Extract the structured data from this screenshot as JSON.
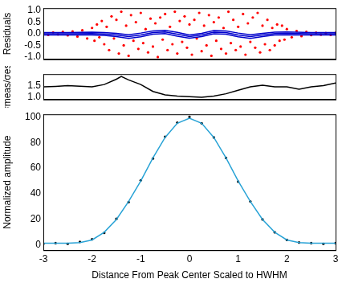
{
  "chart_data": [
    {
      "type": "scatter",
      "y_label": "Residuals",
      "tick_labels": "y",
      "grid": false,
      "xlim": [
        -3,
        3
      ],
      "xticks": [
        -3,
        -2,
        -1,
        0,
        1,
        2,
        3
      ],
      "ylim": [
        -1.1,
        1.1
      ],
      "yticks": [
        {
          "value": -1,
          "label": "-1.0"
        },
        {
          "value": -0.5,
          "label": "-0.5"
        },
        {
          "value": 0,
          "label": "0.0"
        },
        {
          "value": 0.5,
          "label": "0.5"
        },
        {
          "value": 1,
          "label": "1.0"
        }
      ],
      "series": [
        {
          "type": "scatter",
          "color": "#ff0000",
          "marker": "circle",
          "x": [
            -3,
            -2.9,
            -2.8,
            -2.7,
            -2.6,
            -2.5,
            -2.4,
            -2.3,
            -2.2,
            -2.1,
            -2,
            -1.95,
            -1.9,
            -1.85,
            -1.8,
            -1.75,
            -1.7,
            -1.65,
            -1.6,
            -1.55,
            -1.5,
            -1.45,
            -1.4,
            -1.35,
            -1.3,
            -1.25,
            -1.2,
            -1.15,
            -1.1,
            -1.05,
            -1,
            -0.95,
            -0.9,
            -0.85,
            -0.8,
            -0.75,
            -0.7,
            -0.65,
            -0.6,
            -0.55,
            -0.5,
            -0.45,
            -0.4,
            -0.35,
            -0.3,
            -0.25,
            -0.2,
            -0.15,
            -0.1,
            -0.05,
            0,
            0.05,
            0.1,
            0.15,
            0.2,
            0.25,
            0.3,
            0.35,
            0.4,
            0.45,
            0.5,
            0.55,
            0.6,
            0.65,
            0.7,
            0.75,
            0.8,
            0.85,
            0.9,
            0.95,
            1,
            1.05,
            1.1,
            1.15,
            1.2,
            1.25,
            1.3,
            1.35,
            1.4,
            1.45,
            1.5,
            1.55,
            1.6,
            1.65,
            1.7,
            1.75,
            1.8,
            1.85,
            1.9,
            1.95,
            2,
            2.1,
            2.2,
            2.3,
            2.4,
            2.5,
            2.6,
            2.7,
            2.8,
            2.9,
            3
          ],
          "values": [
            0.03,
            -0.05,
            0.06,
            -0.03,
            0.08,
            -0.07,
            0.1,
            -0.12,
            0.15,
            -0.2,
            0.25,
            -0.3,
            0.4,
            -0.15,
            0.55,
            -0.45,
            0.3,
            -0.7,
            0.75,
            -0.2,
            0.6,
            -0.85,
            0.95,
            -0.5,
            0.35,
            -0.95,
            0.8,
            -0.3,
            0.5,
            -0.65,
            0.9,
            -0.4,
            0.2,
            -0.8,
            0.65,
            -0.55,
            0.45,
            -1.0,
            0.7,
            -0.25,
            0.85,
            -0.7,
            0.3,
            -0.45,
            0.95,
            -0.85,
            0.55,
            -0.35,
            0.75,
            -0.6,
            0.4,
            -0.9,
            0.6,
            -0.2,
            0.9,
            -0.75,
            0.35,
            -0.5,
            0.8,
            -0.95,
            0.5,
            -0.3,
            0.7,
            -0.65,
            0.25,
            -0.85,
            0.95,
            -0.4,
            0.6,
            -0.7,
            0.3,
            -0.55,
            0.85,
            -0.9,
            0.45,
            -0.35,
            0.7,
            -0.6,
            0.9,
            -0.8,
            0.35,
            -0.45,
            0.6,
            -0.7,
            0.25,
            -0.5,
            0.4,
            -0.3,
            0.35,
            -0.25,
            0.2,
            -0.15,
            0.12,
            -0.1,
            0.08,
            -0.06,
            0.05,
            -0.04,
            0.03,
            -0.05,
            0.04
          ]
        },
        {
          "type": "line",
          "color": "#0000cc",
          "line_style": "solid",
          "x": [
            -3,
            -2.5,
            -2,
            -1.75,
            -1.5,
            -1.25,
            -1,
            -0.75,
            -0.5,
            -0.25,
            0,
            0.25,
            0.5,
            0.75,
            1,
            1.25,
            1.5,
            1.75,
            2,
            2.5,
            3
          ],
          "values": [
            0.05,
            0.05,
            0.07,
            0.05,
            0.02,
            -0.04,
            0.03,
            0.12,
            0.15,
            0.06,
            -0.05,
            0.02,
            0.14,
            0.12,
            0.03,
            -0.04,
            0.02,
            0.07,
            0.08,
            0.05,
            0.05
          ]
        },
        {
          "type": "line",
          "color": "#0000cc",
          "line_style": "solid",
          "x": [
            -3,
            -2.5,
            -2,
            -1.75,
            -1.5,
            -1.25,
            -1,
            -0.75,
            -0.5,
            -0.25,
            0,
            0.25,
            0.5,
            0.75,
            1,
            1.25,
            1.5,
            1.75,
            2,
            2.5,
            3
          ],
          "values": [
            0,
            0,
            0.01,
            -0.01,
            -0.05,
            -0.12,
            -0.05,
            0.05,
            0.08,
            -0.02,
            -0.12,
            -0.05,
            0.07,
            0.05,
            -0.05,
            -0.12,
            -0.05,
            0.01,
            0.02,
            0,
            0
          ]
        },
        {
          "type": "line",
          "color": "#0000cc",
          "line_style": "solid",
          "x": [
            -3,
            -2.5,
            -2,
            -1.75,
            -1.5,
            -1.25,
            -1,
            -0.75,
            -0.5,
            -0.25,
            0,
            0.25,
            0.5,
            0.75,
            1,
            1.25,
            1.5,
            1.75,
            2,
            2.5,
            3
          ],
          "values": [
            -0.05,
            -0.05,
            -0.05,
            -0.07,
            -0.12,
            -0.2,
            -0.13,
            -0.02,
            0.01,
            -0.1,
            -0.19,
            -0.12,
            0,
            -0.02,
            -0.13,
            -0.2,
            -0.12,
            -0.05,
            -0.04,
            -0.05,
            -0.05
          ]
        }
      ]
    },
    {
      "type": "line",
      "y_label": "σmeas/σest",
      "tick_labels": "y",
      "grid": false,
      "xlim": [
        -3,
        3
      ],
      "xticks": [
        -3,
        -2,
        -1,
        0,
        1,
        2,
        3
      ],
      "ylim": [
        0.9,
        2.0
      ],
      "yticks": [
        {
          "value": 1,
          "label": "1.0"
        },
        {
          "value": 1.5,
          "label": "1.5"
        }
      ],
      "series": [
        {
          "type": "line",
          "color": "#000000",
          "line_style": "solid",
          "x": [
            -3,
            -2.75,
            -2.5,
            -2.25,
            -2,
            -1.75,
            -1.5,
            -1.4,
            -1.25,
            -1,
            -0.75,
            -0.5,
            -0.25,
            0,
            0.25,
            0.5,
            0.75,
            1,
            1.25,
            1.5,
            1.75,
            2,
            2.25,
            2.5,
            2.75,
            3
          ],
          "values": [
            1.45,
            1.47,
            1.5,
            1.48,
            1.45,
            1.55,
            1.78,
            1.9,
            1.75,
            1.55,
            1.25,
            1.1,
            1.05,
            1.02,
            1.0,
            1.05,
            1.15,
            1.3,
            1.45,
            1.52,
            1.45,
            1.45,
            1.35,
            1.45,
            1.5,
            1.62
          ]
        }
      ]
    },
    {
      "type": "line",
      "y_label": "Normalized amplitude",
      "x_label": "Distance From Peak Center Scaled to HWHM",
      "grid": false,
      "xlim": [
        -3,
        3
      ],
      "xticks": [
        -3,
        -2,
        -1,
        0,
        1,
        2,
        3
      ],
      "ylim": [
        -4,
        102
      ],
      "yticks": [
        0,
        20,
        40,
        60,
        80,
        100
      ],
      "series": [
        {
          "type": "scatter",
          "color": "#000000",
          "marker": "circle",
          "x": [
            -3,
            -2.75,
            -2.5,
            -2.25,
            -2,
            -1.75,
            -1.5,
            -1.25,
            -1,
            -0.75,
            -0.5,
            -0.25,
            0,
            0.25,
            0.5,
            0.75,
            1,
            1.25,
            1.5,
            1.75,
            2,
            2.25,
            2.5,
            2.75,
            3
          ],
          "values": [
            1,
            1.5,
            1,
            2.5,
            4.5,
            9.5,
            20.5,
            33.5,
            50.5,
            67.5,
            84.5,
            95.5,
            100,
            95,
            84,
            68,
            49.5,
            34,
            20,
            10,
            4,
            2,
            1.5,
            1,
            1.5
          ]
        },
        {
          "type": "line",
          "color": "#29a3d6",
          "line_style": "solid",
          "x": [
            -3,
            -2.75,
            -2.5,
            -2.25,
            -2,
            -1.75,
            -1.5,
            -1.25,
            -1,
            -0.75,
            -0.5,
            -0.25,
            0,
            0.25,
            0.5,
            0.75,
            1,
            1.25,
            1.5,
            1.75,
            2,
            2.25,
            2.5,
            2.75,
            3
          ],
          "values": [
            1.5,
            1.5,
            1.5,
            2,
            4,
            10,
            20,
            34,
            50,
            68,
            84,
            95,
            99,
            95,
            84,
            68,
            50,
            34,
            20,
            10,
            4,
            2,
            1.5,
            1.5,
            1.5
          ]
        }
      ]
    }
  ]
}
